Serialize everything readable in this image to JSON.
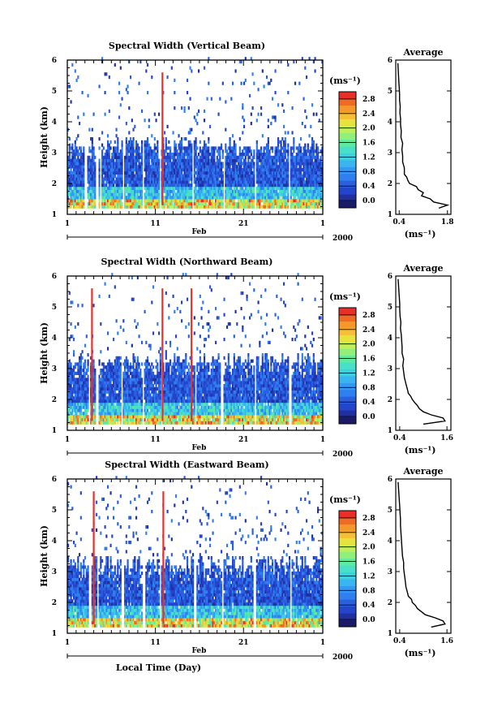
{
  "chart_data": [
    {
      "type": "heatmap",
      "title": "Spectral Width (Vertical Beam)",
      "ylabel": "Height (km)",
      "y_ticks": [
        "1",
        "2",
        "3",
        "4",
        "5",
        "6"
      ],
      "ylim": [
        1,
        6
      ],
      "x_ticks": [
        "1",
        "11",
        "21",
        "1"
      ],
      "x_range_label": "Feb",
      "year_label": "2000",
      "xlabel": "",
      "colorbar": {
        "unit": "(ms⁻¹)",
        "tick_labels": [
          "0.0",
          "0.4",
          "0.8",
          "1.2",
          "1.6",
          "2.0",
          "2.4",
          "2.8"
        ],
        "range": [
          -0.2,
          3.0
        ],
        "colors": [
          "#1a1a66",
          "#2030a0",
          "#2544cc",
          "#2a60e0",
          "#2f7ff0",
          "#3399f5",
          "#39b5f0",
          "#3ecfe0",
          "#48e0c8",
          "#60eaa0",
          "#90f07a",
          "#bff05a",
          "#e6e23e",
          "#f5c034",
          "#f5982c",
          "#f06a26",
          "#e8302a"
        ]
      },
      "gap_days": [
        3,
        4.3,
        4.7,
        7.3,
        9.5,
        11.5,
        15.2,
        18.7,
        22.3,
        26.1,
        30.5
      ],
      "spike_days": [
        11.7
      ],
      "profile": {
        "title": "Average",
        "xlabel": "(ms⁻¹)",
        "x_ticks": [
          "0.4",
          "1.8"
        ],
        "xlim": [
          0.3,
          1.9
        ],
        "heights": [
          1.2,
          1.3,
          1.4,
          1.5,
          1.6,
          1.7,
          1.8,
          1.9,
          2.0,
          2.1,
          2.2,
          2.3,
          2.5,
          2.7,
          2.9,
          3.1,
          3.3,
          3.5,
          3.7,
          3.9,
          4.1,
          4.3,
          4.5,
          4.7,
          4.9,
          5.1,
          5.3,
          5.5,
          5.7,
          5.9
        ],
        "values": [
          1.55,
          1.8,
          1.4,
          1.3,
          1.05,
          1.1,
          0.95,
          0.9,
          0.7,
          0.65,
          0.62,
          0.55,
          0.55,
          0.5,
          0.5,
          0.48,
          0.5,
          0.45,
          0.46,
          0.44,
          0.44,
          0.42,
          0.43,
          0.41,
          0.41,
          0.4,
          0.39,
          0.38,
          0.37,
          0.36
        ]
      }
    },
    {
      "type": "heatmap",
      "title": "Spectral Width (Northward Beam)",
      "ylabel": "Height (km)",
      "y_ticks": [
        "1",
        "2",
        "3",
        "4",
        "5",
        "6"
      ],
      "ylim": [
        1,
        6
      ],
      "x_ticks": [
        "1",
        "11",
        "21",
        "1"
      ],
      "x_range_label": "Feb",
      "year_label": "2000",
      "xlabel": "",
      "colorbar": {
        "unit": "(ms⁻¹)",
        "tick_labels": [
          "0.0",
          "0.4",
          "0.8",
          "1.2",
          "1.6",
          "2.0",
          "2.4",
          "2.8"
        ],
        "range": [
          -0.2,
          3.0
        ],
        "colors": [
          "#1a1a66",
          "#2030a0",
          "#2544cc",
          "#2a60e0",
          "#2f7ff0",
          "#3399f5",
          "#39b5f0",
          "#3ecfe0",
          "#48e0c8",
          "#60eaa0",
          "#90f07a",
          "#bff05a",
          "#e6e23e",
          "#f5c034",
          "#f5982c",
          "#f06a26",
          "#e8302a"
        ]
      },
      "gap_days": [
        3.4,
        4.3,
        7.1,
        9.5,
        11.6,
        15.5,
        18.5,
        22.3,
        26.2,
        30.6
      ],
      "spike_days": [
        3.7,
        11.7,
        15.0
      ],
      "profile": {
        "title": "Average",
        "xlabel": "(ms⁻¹)",
        "x_ticks": [
          "0.4",
          "1.6"
        ],
        "xlim": [
          0.3,
          1.7
        ],
        "heights": [
          1.2,
          1.3,
          1.4,
          1.5,
          1.6,
          1.7,
          1.8,
          1.9,
          2.0,
          2.1,
          2.2,
          2.3,
          2.5,
          2.7,
          2.9,
          3.1,
          3.3,
          3.5,
          3.7,
          3.9,
          4.1,
          4.3,
          4.5,
          4.7,
          4.9,
          5.1,
          5.3,
          5.5,
          5.7,
          5.9
        ],
        "values": [
          1.0,
          1.55,
          1.5,
          1.2,
          1.0,
          0.9,
          0.85,
          0.78,
          0.72,
          0.68,
          0.62,
          0.6,
          0.56,
          0.52,
          0.5,
          0.48,
          0.5,
          0.46,
          0.46,
          0.45,
          0.44,
          0.42,
          0.43,
          0.41,
          0.4,
          0.4,
          0.39,
          0.38,
          0.37,
          0.36
        ]
      }
    },
    {
      "type": "heatmap",
      "title": "Spectral Width (Eastward Beam)",
      "ylabel": "Height (km)",
      "y_ticks": [
        "1",
        "2",
        "3",
        "4",
        "5",
        "6"
      ],
      "ylim": [
        1,
        6
      ],
      "x_ticks": [
        "1",
        "11",
        "21",
        "1"
      ],
      "x_range_label": "Feb",
      "year_label": "2000",
      "xlabel": "Local Time (Day)",
      "colorbar": {
        "unit": "(ms⁻¹)",
        "tick_labels": [
          "0.0",
          "0.4",
          "0.8",
          "1.2",
          "1.6",
          "2.0",
          "2.4",
          "2.8"
        ],
        "range": [
          -0.2,
          3.0
        ],
        "colors": [
          "#1a1a66",
          "#2030a0",
          "#2544cc",
          "#2a60e0",
          "#2f7ff0",
          "#3399f5",
          "#39b5f0",
          "#3ecfe0",
          "#48e0c8",
          "#60eaa0",
          "#90f07a",
          "#bff05a",
          "#e6e23e",
          "#f5c034",
          "#f5982c",
          "#f06a26",
          "#e8302a"
        ]
      },
      "gap_days": [
        3.5,
        4.4,
        7.2,
        9.6,
        11.5,
        15.4,
        18.6,
        22.2,
        26.3,
        30.6
      ],
      "spike_days": [
        3.9,
        11.8
      ],
      "profile": {
        "title": "Average",
        "xlabel": "(ms⁻¹)",
        "x_ticks": [
          "0.4",
          "1.6"
        ],
        "xlim": [
          0.3,
          1.7
        ],
        "heights": [
          1.2,
          1.3,
          1.4,
          1.5,
          1.6,
          1.7,
          1.8,
          1.9,
          2.0,
          2.1,
          2.2,
          2.3,
          2.5,
          2.7,
          2.9,
          3.1,
          3.3,
          3.5,
          3.7,
          3.9,
          4.1,
          4.3,
          4.5,
          4.7,
          4.9,
          5.1,
          5.3,
          5.5,
          5.7,
          5.9
        ],
        "values": [
          1.2,
          1.55,
          1.5,
          1.3,
          1.05,
          0.95,
          0.85,
          0.8,
          0.72,
          0.7,
          0.62,
          0.6,
          0.56,
          0.54,
          0.52,
          0.5,
          0.5,
          0.47,
          0.46,
          0.45,
          0.44,
          0.43,
          0.42,
          0.42,
          0.41,
          0.4,
          0.39,
          0.38,
          0.37,
          0.36
        ]
      }
    }
  ]
}
